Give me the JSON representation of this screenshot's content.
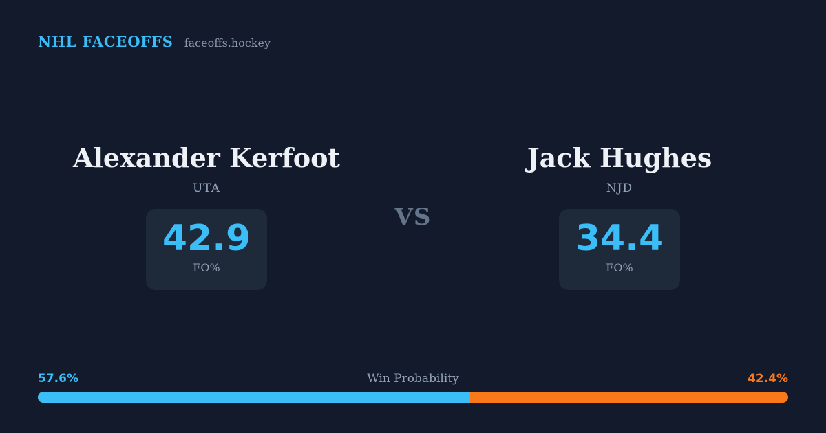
{
  "theme": {
    "background": "#121a2b",
    "card_background": "#1e2939",
    "accent_blue": "#3bbdf8",
    "accent_orange": "#f9791a",
    "text_primary": "#eef2f7",
    "text_muted": "#94a3b8",
    "vs_color": "#64748b"
  },
  "header": {
    "brand": "NHL FACEOFFS",
    "site": "faceoffs.hockey"
  },
  "matchup": {
    "vs_label": "VS",
    "players": [
      {
        "name": "Alexander Kerfoot",
        "team": "UTA",
        "stat_value": "42.9",
        "stat_label": "FO%"
      },
      {
        "name": "Jack Hughes",
        "team": "NJD",
        "stat_value": "34.4",
        "stat_label": "FO%"
      }
    ]
  },
  "win_probability": {
    "label": "Win Probability",
    "left_pct_label": "57.6%",
    "right_pct_label": "42.4%",
    "left_value": 57.6,
    "right_value": 42.4
  },
  "chart_data": {
    "type": "bar",
    "title": "Win Probability",
    "categories": [
      "Alexander Kerfoot (UTA)",
      "Jack Hughes (NJD)"
    ],
    "series": [
      {
        "name": "FO%",
        "values": [
          42.9,
          34.4
        ]
      },
      {
        "name": "Win Probability %",
        "values": [
          57.6,
          42.4
        ]
      }
    ],
    "xlabel": "",
    "ylabel": "",
    "legend_position": "none",
    "grid": false,
    "ylim": [
      0,
      100
    ]
  }
}
